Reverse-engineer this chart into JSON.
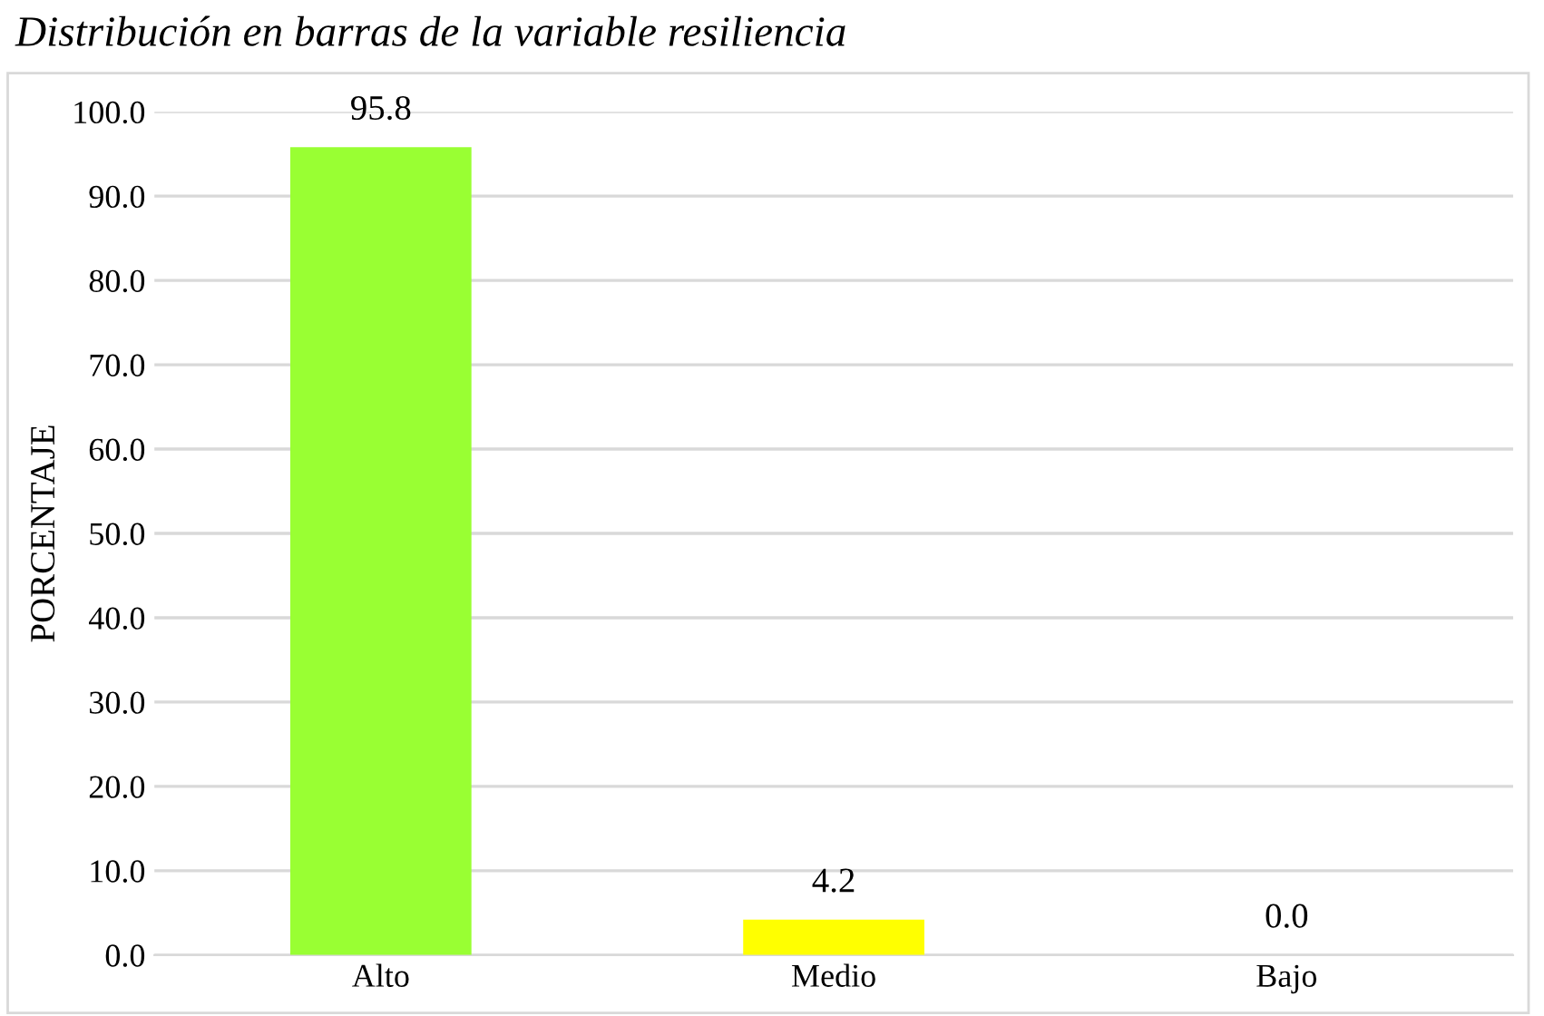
{
  "chart_data": {
    "type": "bar",
    "title": "Distribución en barras de la variable resiliencia",
    "ylabel": "PORCENTAJE",
    "categories": [
      "Alto",
      "Medio",
      "Bajo"
    ],
    "values": [
      95.8,
      4.2,
      0.0
    ],
    "colors": [
      "#99ff33",
      "#ffff00",
      "#a6a6a6"
    ],
    "ylim": [
      0,
      100
    ],
    "yticks": [
      {
        "value": 0,
        "label": "0.0"
      },
      {
        "value": 10,
        "label": "10.0"
      },
      {
        "value": 20,
        "label": "20.0"
      },
      {
        "value": 30,
        "label": "30.0"
      },
      {
        "value": 40,
        "label": "40.0"
      },
      {
        "value": 50,
        "label": "50.0"
      },
      {
        "value": 60,
        "label": "60.0"
      },
      {
        "value": 70,
        "label": "70.0"
      },
      {
        "value": 80,
        "label": "80.0"
      },
      {
        "value": 90,
        "label": "90.0"
      },
      {
        "value": 100,
        "label": "100.0"
      }
    ],
    "value_labels": [
      "95.8",
      "4.2",
      "0.0"
    ],
    "grid": "y"
  }
}
